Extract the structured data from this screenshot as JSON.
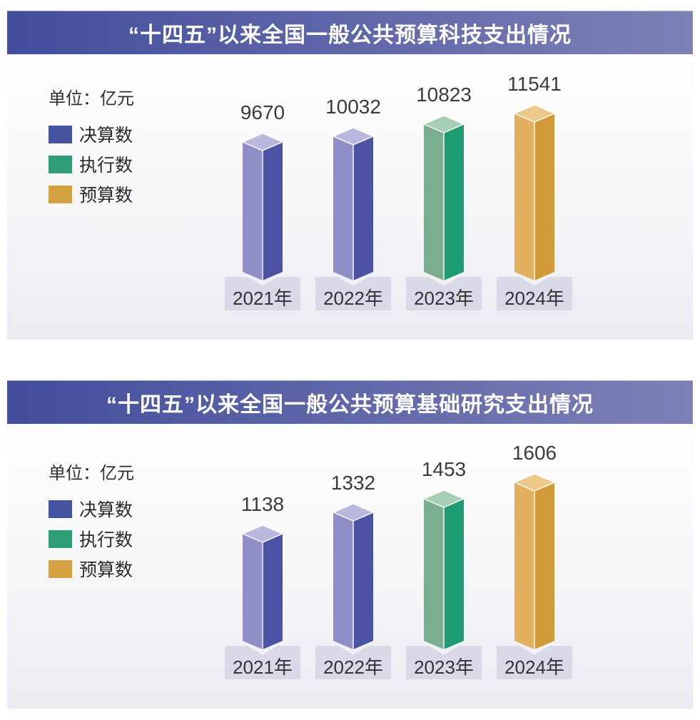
{
  "unit_label": "单位：亿元",
  "legend": [
    {
      "label": "决算数",
      "color": "#4653a0"
    },
    {
      "label": "执行数",
      "color": "#2f9e77"
    },
    {
      "label": "预算数",
      "color": "#d5a243"
    }
  ],
  "series_colors": {
    "决算数": {
      "left": "#8f8ec6",
      "right": "#4b51a3",
      "top": "#b9b7dd"
    },
    "执行数": {
      "left": "#7bae90",
      "right": "#1d9b72",
      "top": "#a8cfb4"
    },
    "预算数": {
      "left": "#e2b05f",
      "right": "#d09a39",
      "top": "#ecc98b"
    }
  },
  "colors": {
    "title_gradient_left": "#424d9c",
    "title_gradient_right": "#7e81b6",
    "title_text": "#ffffff",
    "year_box_bg": "#d9d9e7",
    "value_text": "#3b3b3b",
    "chart_bg_bottom": "#ebebf2"
  },
  "chart_data": [
    {
      "type": "bar",
      "title": "“十四五”以来全国一般公共预算科技支出情况",
      "unit": "单位：亿元",
      "categories": [
        "2021年",
        "2022年",
        "2023年",
        "2024年"
      ],
      "values": [
        9670,
        10032,
        10823,
        11541
      ],
      "series_by_year": [
        "决算数",
        "决算数",
        "执行数",
        "预算数"
      ],
      "legend": [
        "决算数",
        "执行数",
        "预算数"
      ],
      "legend_position": "left",
      "grid": false,
      "ylim": [
        0,
        11541
      ],
      "ylabel": "亿元"
    },
    {
      "type": "bar",
      "title": "“十四五”以来全国一般公共预算基础研究支出情况",
      "unit": "单位：亿元",
      "categories": [
        "2021年",
        "2022年",
        "2023年",
        "2024年"
      ],
      "values": [
        1138,
        1332,
        1453,
        1606
      ],
      "series_by_year": [
        "决算数",
        "决算数",
        "执行数",
        "预算数"
      ],
      "legend": [
        "决算数",
        "执行数",
        "预算数"
      ],
      "legend_position": "left",
      "grid": false,
      "ylim": [
        0,
        1606
      ],
      "ylabel": "亿元"
    }
  ]
}
